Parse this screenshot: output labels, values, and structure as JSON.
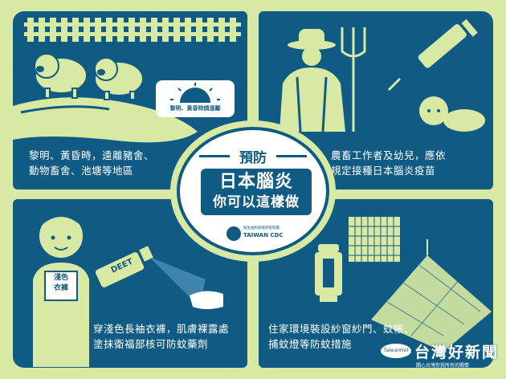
{
  "center": {
    "prevent": "預防",
    "title": "日本腦炎",
    "subtitle": "你可以這樣做",
    "org_small": "衛生福利部疾病管制署",
    "org_en": "TAIWAN CDC"
  },
  "panels": {
    "top_left": {
      "caption_line1": "黎明、黃昏時，遠離豬舍、",
      "caption_line2": "動物畜舍、池塘等地區",
      "sign": "黎明、黃昏時請遠離"
    },
    "top_right": {
      "caption_line1": "農畜工作者及幼兒，應依",
      "caption_line2": "規定接種日本腦炎疫苗"
    },
    "bottom_left": {
      "caption_line1": "穿淺色長袖衣褲，肌膚裸露處",
      "caption_line2": "塗抹衛福部核可防蚊藥劑",
      "shirt_label_1": "淺色",
      "shirt_label_2": "衣褲",
      "spray_label": "DEET"
    },
    "bottom_right": {
      "caption_line1": "住家環境裝設紗窗紗門、蚊帳、",
      "caption_line2": "捕蚊燈等防蚊措施"
    }
  },
  "watermark": {
    "title": "台灣好新聞",
    "logo": "TaiwanHot",
    "sub": "關心台灣你我所有的關懷"
  },
  "colors": {
    "panel_blue": "#0f5b84",
    "background_green": "#d7e9a2",
    "white": "#ffffff"
  }
}
